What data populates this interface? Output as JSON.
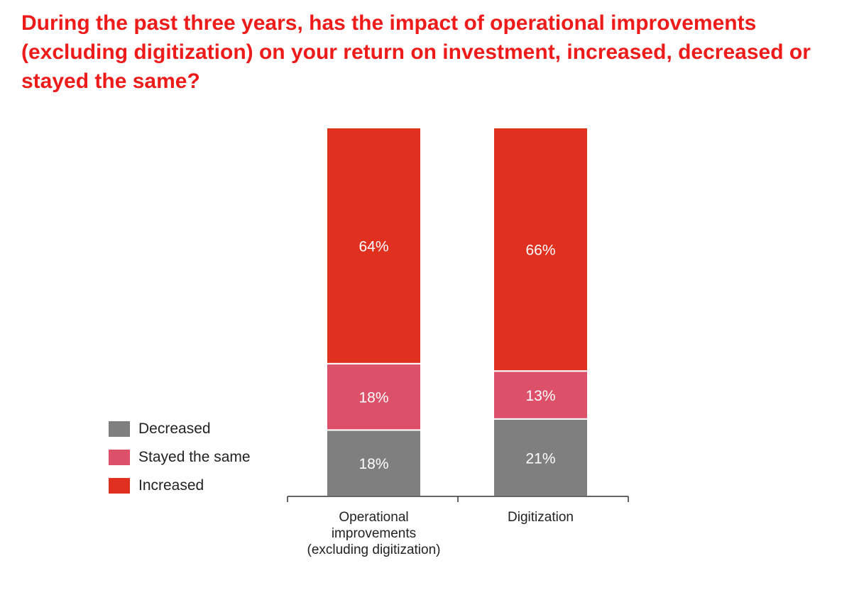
{
  "title": "During the past three years, has the impact of operational improvements (excluding digitization) on your return on investment, increased, decreased or stayed the same?",
  "colors": {
    "title": "#ee1b1b",
    "Decreased": "#7f7f7f",
    "Stayed the same": "#dc5169",
    "Increased": "#df3020"
  },
  "legend": [
    {
      "label": "Decreased",
      "color": "#7f7f7f"
    },
    {
      "label": "Stayed the same",
      "color": "#dc5169"
    },
    {
      "label": "Increased",
      "color": "#df3020"
    }
  ],
  "chart_data": {
    "type": "bar",
    "stacked": true,
    "percent": true,
    "title": "During the past three years, has the impact of operational improvements (excluding digitization) on your return on investment, increased, decreased or stayed the same?",
    "categories": [
      "Operational improvements (excluding digitization)",
      "Digitization"
    ],
    "category_lines": [
      [
        "Operational",
        "improvements",
        "(excluding digitization)"
      ],
      [
        "Digitization"
      ]
    ],
    "series": [
      {
        "name": "Decreased",
        "values": [
          18,
          21
        ],
        "labels": [
          "18%",
          "21%"
        ],
        "color": "#7f7f7f"
      },
      {
        "name": "Stayed the same",
        "values": [
          18,
          13
        ],
        "labels": [
          "18%",
          "13%"
        ],
        "color": "#dc5169"
      },
      {
        "name": "Increased",
        "values": [
          64,
          66
        ],
        "labels": [
          "64%",
          "66%"
        ],
        "color": "#df3020"
      }
    ],
    "ylim": [
      0,
      100
    ],
    "legend_position": "left",
    "grid": false
  }
}
